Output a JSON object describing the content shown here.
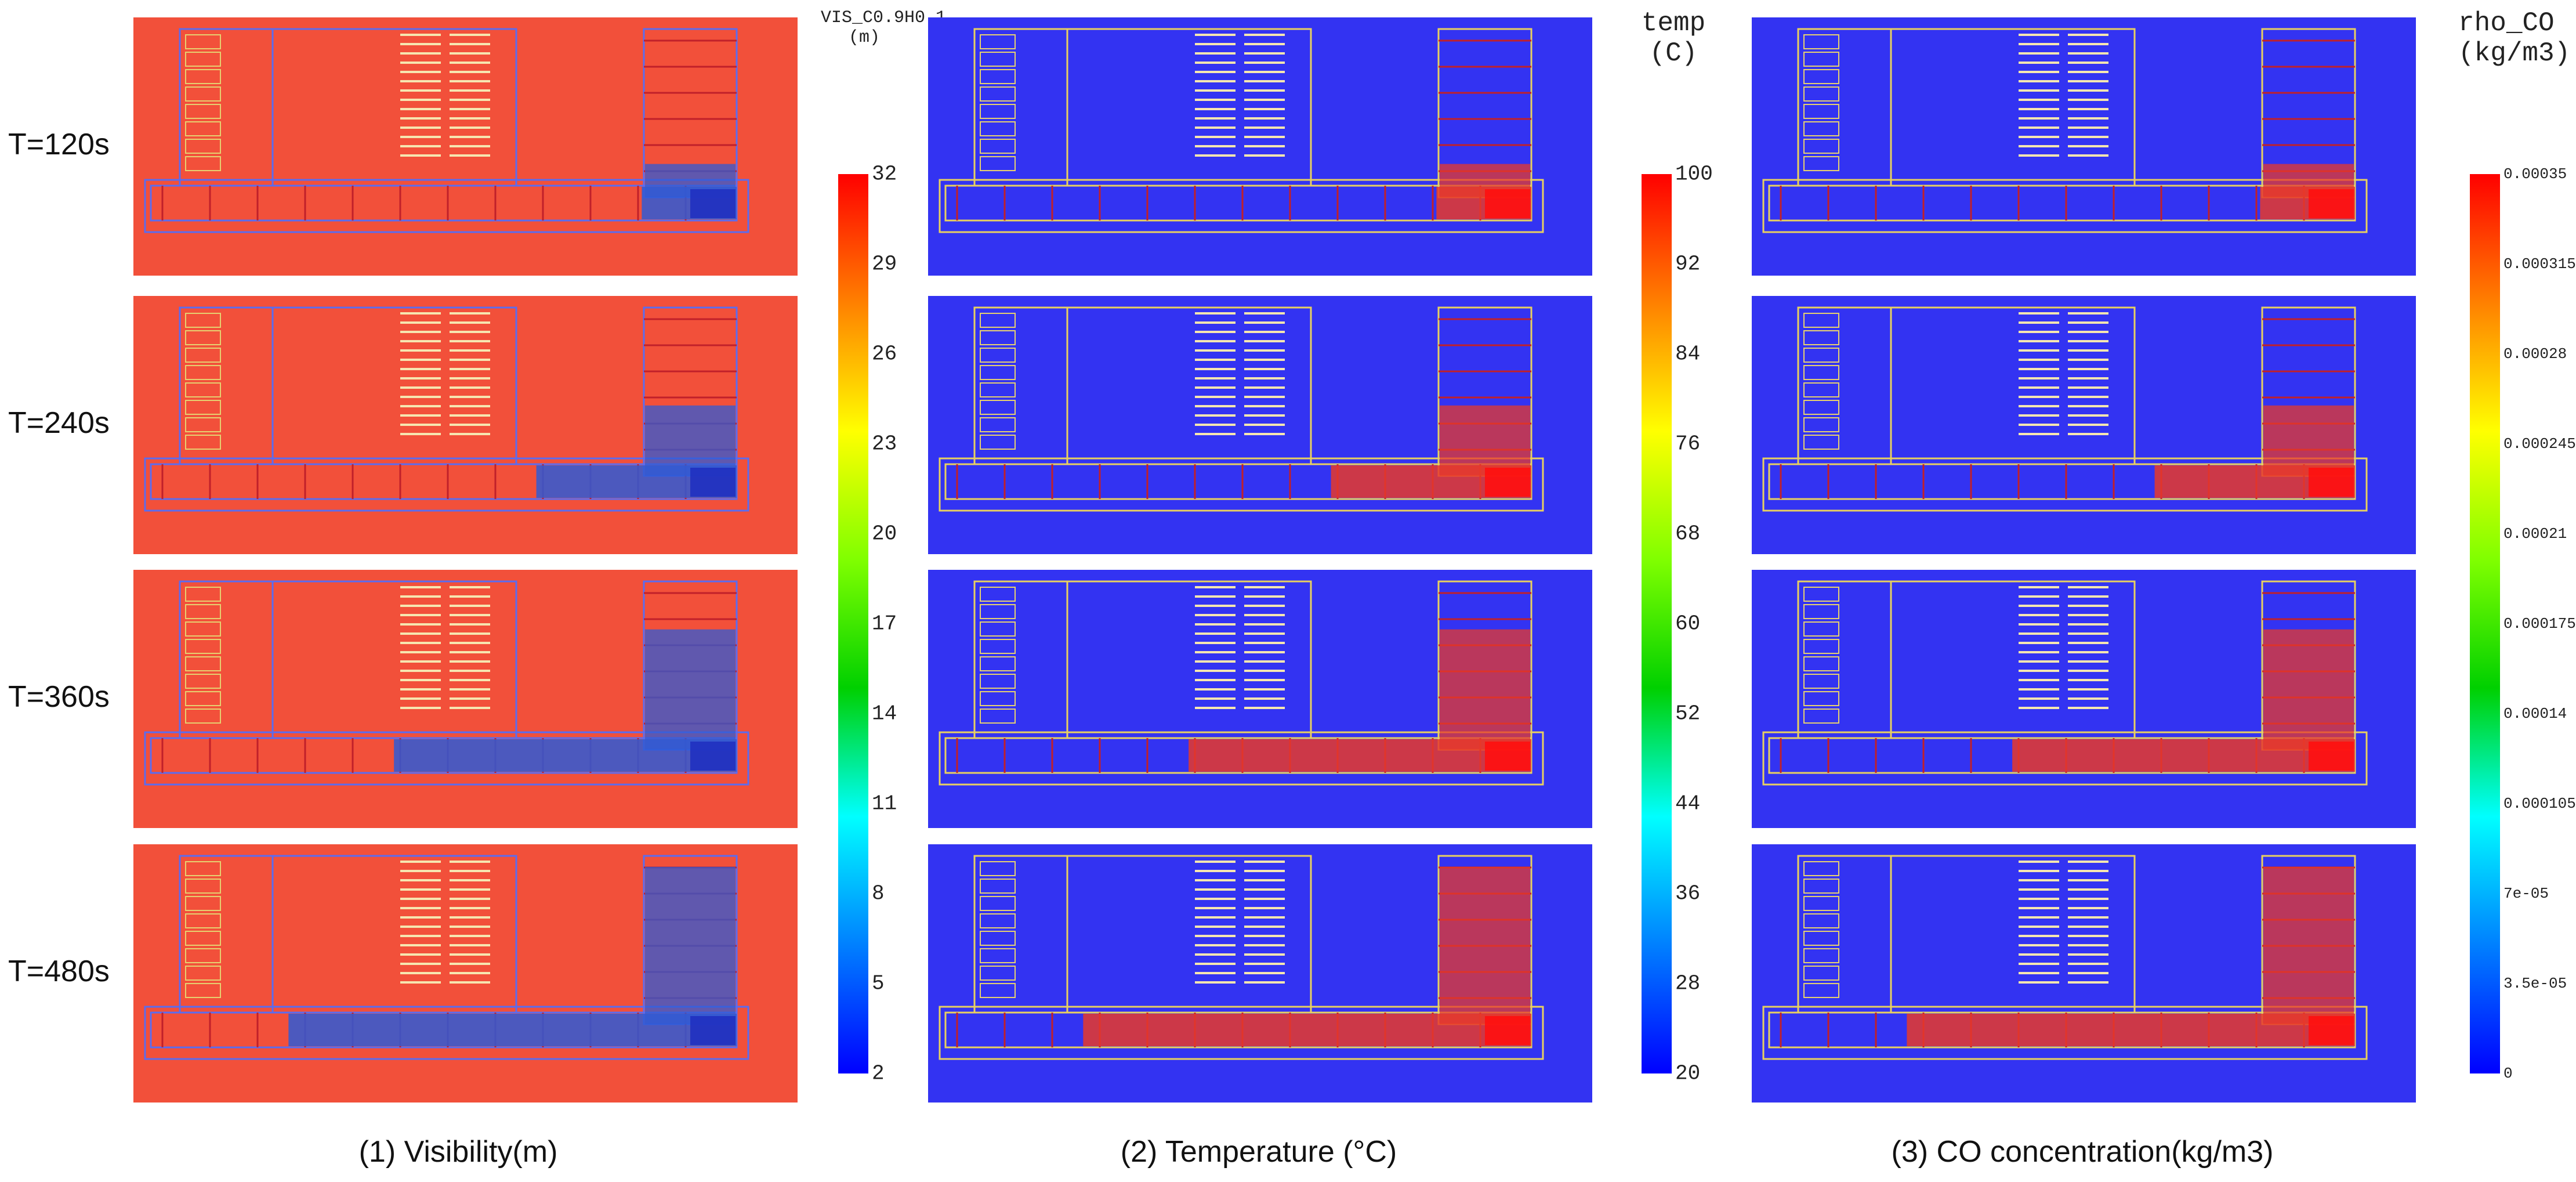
{
  "time_labels": [
    "T=120s",
    "T=240s",
    "T=360s",
    "T=480s"
  ],
  "columns": [
    {
      "caption": "(1) Visibility(m)",
      "background": "#f2503a",
      "affected_color": "#2f5bd6",
      "colorbar": {
        "title": "VIS_C0.9H0.1\n(m)",
        "ticks": [
          "32",
          "29",
          "26",
          "23",
          "20",
          "17",
          "14",
          "11",
          "8",
          "5",
          "2"
        ]
      }
    },
    {
      "caption": "(2) Temperature (°C)",
      "background": "#3333f2",
      "affected_color": "#e83a2a",
      "colorbar": {
        "title": "temp\n(C)",
        "ticks": [
          "100",
          "92",
          "84",
          "76",
          "68",
          "60",
          "52",
          "44",
          "36",
          "28",
          "20"
        ]
      }
    },
    {
      "caption": "(3) CO concentration(kg/m3)",
      "background": "#3333f2",
      "affected_color": "#e83a2a",
      "colorbar": {
        "title": "rho_CO\n(kg/m3)",
        "ticks": [
          "0.00035",
          "0.000315",
          "0.00028",
          "0.000245",
          "0.00021",
          "0.000175",
          "0.00014",
          "0.000105",
          "7e-05",
          "3.5e-05",
          "0"
        ]
      }
    }
  ],
  "colormap": [
    "#ff0000",
    "#ff8000",
    "#ffff00",
    "#80ff00",
    "#00d000",
    "#00ffff",
    "#0080ff",
    "#0000ff"
  ]
}
